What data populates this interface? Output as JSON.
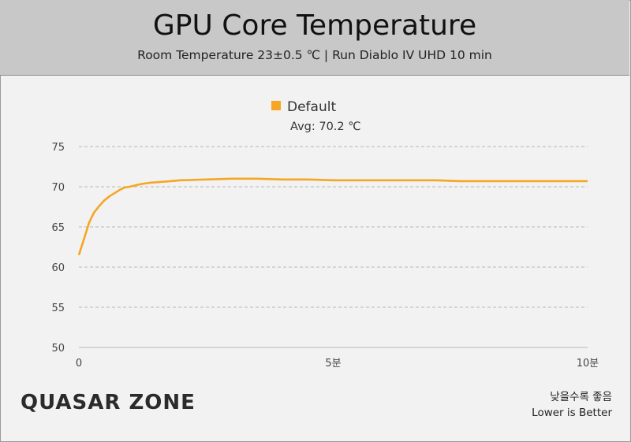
{
  "header": {
    "title": "GPU Core Temperature",
    "subtitle": "Room Temperature 23±0.5 ℃  |  Run Diablo IV UHD 10 min"
  },
  "legend": {
    "label": "Default",
    "avg_text": "Avg: 70.2 ℃"
  },
  "footer": {
    "logo_text": "QUASAR ZONE",
    "note_ko": "낮을수록 좋음",
    "note_en": "Lower is Better"
  },
  "colors": {
    "series": "#f5a623",
    "grid": "#b5b5b5",
    "header_bg": "#c8c8c8",
    "logo_accent": "#f39c12"
  },
  "chart_data": {
    "type": "line",
    "ylim": [
      50,
      75
    ],
    "yticks": [
      "50",
      "55",
      "60",
      "65",
      "70",
      "75"
    ],
    "xlim": [
      0,
      10
    ],
    "xticks": [
      {
        "value": 0,
        "label": "0"
      },
      {
        "value": 5,
        "label": "5분"
      },
      {
        "value": 10,
        "label": "10분"
      }
    ],
    "grid": true,
    "legend_position": "top-center",
    "series": [
      {
        "name": "Default",
        "x": [
          0,
          0.05,
          0.1,
          0.15,
          0.2,
          0.25,
          0.3,
          0.35,
          0.4,
          0.5,
          0.6,
          0.7,
          0.8,
          0.9,
          1.0,
          1.2,
          1.4,
          1.6,
          1.8,
          2.0,
          2.5,
          3.0,
          3.5,
          4.0,
          4.5,
          5.0,
          5.5,
          6.0,
          6.5,
          7.0,
          7.5,
          8.0,
          8.5,
          9.0,
          9.5,
          10.0
        ],
        "y": [
          61.5,
          62.5,
          63.5,
          64.5,
          65.5,
          66.2,
          66.8,
          67.2,
          67.6,
          68.3,
          68.8,
          69.2,
          69.6,
          69.9,
          70.0,
          70.3,
          70.5,
          70.6,
          70.7,
          70.8,
          70.9,
          71.0,
          71.0,
          70.9,
          70.9,
          70.8,
          70.8,
          70.8,
          70.8,
          70.8,
          70.7,
          70.7,
          70.7,
          70.7,
          70.7,
          70.7
        ]
      }
    ]
  }
}
